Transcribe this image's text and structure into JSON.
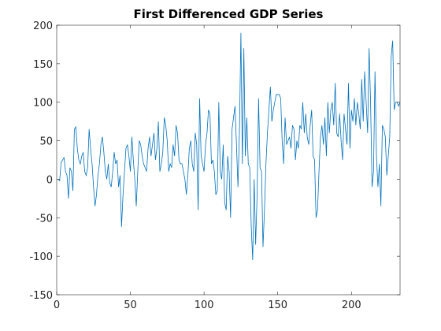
{
  "chart_data": {
    "type": "line",
    "title": "First Differenced GDP Series",
    "x": [
      1,
      2,
      3,
      4,
      5,
      6,
      7,
      8,
      9,
      10,
      11,
      12,
      13,
      14,
      15,
      16,
      17,
      18,
      19,
      20,
      21,
      22,
      23,
      24,
      25,
      26,
      27,
      28,
      29,
      30,
      31,
      32,
      33,
      34,
      35,
      36,
      37,
      38,
      39,
      40,
      41,
      42,
      43,
      44,
      45,
      46,
      47,
      48,
      49,
      50,
      51,
      52,
      53,
      54,
      55,
      56,
      57,
      58,
      59,
      60,
      61,
      62,
      63,
      64,
      65,
      66,
      67,
      68,
      69,
      70,
      71,
      72,
      73,
      74,
      75,
      76,
      77,
      78,
      79,
      80,
      81,
      82,
      83,
      84,
      85,
      86,
      87,
      88,
      89,
      90,
      91,
      92,
      93,
      94,
      95,
      96,
      97,
      98,
      99,
      100,
      101,
      102,
      103,
      104,
      105,
      106,
      107,
      108,
      109,
      110,
      111,
      112,
      113,
      114,
      115,
      116,
      117,
      118,
      119,
      120,
      121,
      122,
      123,
      124,
      125,
      126,
      127,
      128,
      129,
      130,
      131,
      132,
      133,
      134,
      135,
      136,
      137,
      138,
      139,
      140,
      141,
      142,
      143,
      144,
      145,
      146,
      147,
      148,
      149,
      150,
      151,
      152,
      153,
      154,
      155,
      156,
      157,
      158,
      159,
      160,
      161,
      162,
      163,
      164,
      165,
      166,
      167,
      168,
      169,
      170,
      171,
      172,
      173,
      174,
      175,
      176,
      177,
      178,
      179,
      180,
      181,
      182,
      183,
      184,
      185,
      186,
      187,
      188,
      189,
      190,
      191,
      192,
      193,
      194,
      195,
      196,
      197,
      198,
      199,
      200,
      201,
      202,
      203,
      204,
      205,
      206,
      207,
      208,
      209,
      210,
      211,
      212,
      213,
      214,
      215,
      216,
      217,
      218,
      219,
      220,
      221,
      222,
      223,
      224,
      225,
      226,
      227,
      228,
      229,
      230,
      231,
      232,
      233
    ],
    "series": [
      {
        "color": "#0072bd",
        "values": [
          0,
          -2,
          22,
          25,
          28,
          10,
          5,
          -25,
          15,
          10,
          -15,
          65,
          68,
          40,
          25,
          20,
          30,
          35,
          10,
          5,
          15,
          65,
          40,
          20,
          -10,
          -35,
          -20,
          5,
          20,
          45,
          55,
          35,
          10,
          0,
          20,
          -5,
          -10,
          10,
          35,
          20,
          25,
          -10,
          5,
          -62,
          -20,
          10,
          40,
          45,
          30,
          10,
          55,
          25,
          0,
          -35,
          10,
          50,
          45,
          30,
          20,
          15,
          10,
          40,
          55,
          30,
          45,
          60,
          25,
          40,
          75,
          10,
          20,
          35,
          80,
          70,
          50,
          10,
          20,
          15,
          45,
          30,
          70,
          60,
          25,
          20,
          20,
          10,
          0,
          -20,
          5,
          40,
          50,
          20,
          10,
          60,
          45,
          -40,
          105,
          30,
          20,
          10,
          45,
          60,
          90,
          85,
          20,
          25,
          10,
          -20,
          -15,
          100,
          10,
          0,
          45,
          -30,
          -40,
          30,
          10,
          -50,
          65,
          80,
          95,
          45,
          -10,
          60,
          190,
          20,
          170,
          30,
          80,
          20,
          15,
          -60,
          -105,
          0,
          -85,
          -20,
          105,
          15,
          10,
          -88,
          -40,
          20,
          60,
          90,
          120,
          75,
          90,
          100,
          110,
          110,
          110,
          105,
          50,
          20,
          80,
          45,
          50,
          55,
          40,
          70,
          65,
          25,
          50,
          40,
          70,
          65,
          100,
          60,
          85,
          55,
          45,
          70,
          90,
          30,
          25,
          -50,
          -40,
          10,
          55,
          70,
          45,
          80,
          30,
          100,
          60,
          90,
          100,
          70,
          125,
          60,
          55,
          85,
          50,
          25,
          85,
          65,
          45,
          125,
          40,
          90,
          75,
          105,
          70,
          100,
          85,
          65,
          130,
          75,
          140,
          100,
          60,
          170,
          100,
          -10,
          10,
          140,
          30,
          -10,
          20,
          -35,
          70,
          65,
          55,
          5,
          30,
          55,
          160,
          180,
          90,
          100,
          100,
          95,
          100
        ]
      }
    ],
    "xlim": [
      0,
      233
    ],
    "ylim": [
      -150,
      200
    ],
    "xticks": [
      0,
      50,
      100,
      150,
      200
    ],
    "yticks": [
      -150,
      -100,
      -50,
      0,
      50,
      100,
      150,
      200
    ]
  }
}
